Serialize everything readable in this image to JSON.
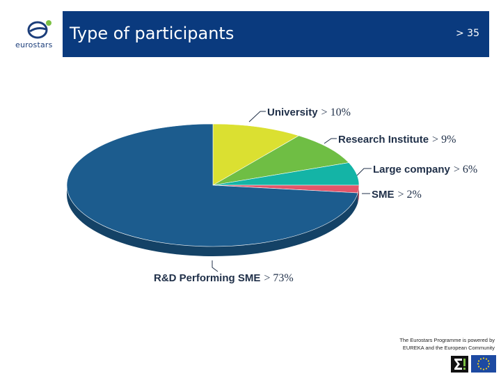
{
  "header": {
    "logo_text": "eurostars",
    "title": "Type of participants",
    "page_number": "> 35"
  },
  "chart_data": {
    "type": "pie",
    "title": "",
    "slices": [
      {
        "name": "University",
        "value": 10,
        "value_label": "> 10%",
        "color": "#dbe031"
      },
      {
        "name": "Research Institute",
        "value": 9,
        "value_label": "> 9%",
        "color": "#6fbe44"
      },
      {
        "name": "Large company",
        "value": 6,
        "value_label": "> 6%",
        "color": "#14b4a6"
      },
      {
        "name": "SME",
        "value": 2,
        "value_label": "> 2%",
        "color": "#e35569"
      },
      {
        "name": "R&D Performing SME",
        "value": 73,
        "value_label": "> 73%",
        "color": "#1c5c8e"
      }
    ]
  },
  "footer": {
    "line1": "The Eurostars Programme is powered by",
    "line2": "EUREKA and the European Community"
  },
  "icons": [
    "eurostars-logo-icon",
    "eureka-logo-icon",
    "eu-flag-icon"
  ]
}
